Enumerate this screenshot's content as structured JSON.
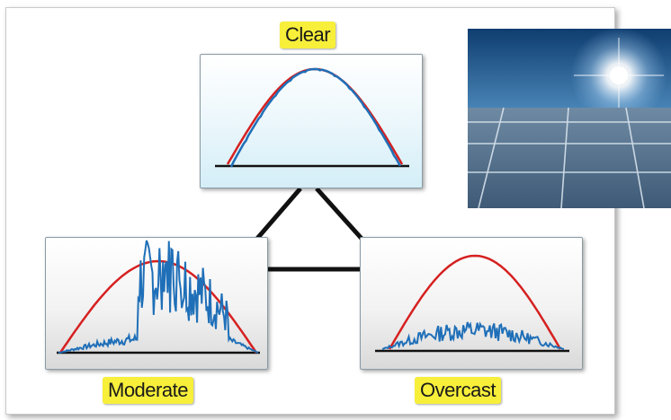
{
  "labels": {
    "clear": "Clear",
    "moderate": "Moderate",
    "overcast": "Overcast"
  },
  "colors": {
    "reference_curve": "#d62020",
    "measured_curve": "#1f6fb8",
    "label_background": "#f7ef3a",
    "connector": "#111111"
  },
  "photo": {
    "subject": "sun-over-solar-panels"
  }
}
